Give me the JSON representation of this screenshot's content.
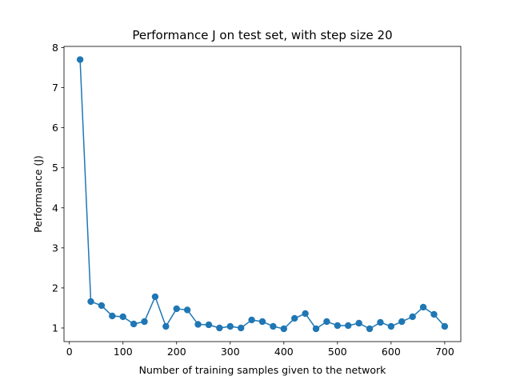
{
  "chart_data": {
    "type": "line",
    "title": "Performance J on test set, with step size 20",
    "xlabel": "Number of training samples given to the network",
    "ylabel": "Performance (J)",
    "xlim": [
      -10,
      730
    ],
    "ylim": [
      0.66,
      8.03
    ],
    "xticks": [
      0,
      100,
      200,
      300,
      400,
      500,
      600,
      700
    ],
    "yticks": [
      1,
      2,
      3,
      4,
      5,
      6,
      7,
      8
    ],
    "grid": false,
    "legend": "none",
    "marker": "circle",
    "color": "#1f77b4",
    "series": [
      {
        "x": [
          20,
          40,
          60,
          80,
          100,
          120,
          140,
          160,
          180,
          200,
          220,
          240,
          260,
          280,
          300,
          320,
          340,
          360,
          380,
          400,
          420,
          440,
          460,
          480,
          500,
          520,
          540,
          560,
          580,
          600,
          620,
          640,
          660,
          680,
          700
        ],
        "values": [
          7.7,
          1.66,
          1.56,
          1.3,
          1.28,
          1.1,
          1.16,
          1.78,
          1.04,
          1.48,
          1.45,
          1.09,
          1.08,
          1.0,
          1.04,
          1.0,
          1.2,
          1.16,
          1.04,
          0.98,
          1.24,
          1.36,
          0.98,
          1.16,
          1.06,
          1.06,
          1.12,
          0.98,
          1.14,
          1.04,
          1.16,
          1.28,
          1.52,
          1.34,
          1.04
        ]
      }
    ]
  }
}
